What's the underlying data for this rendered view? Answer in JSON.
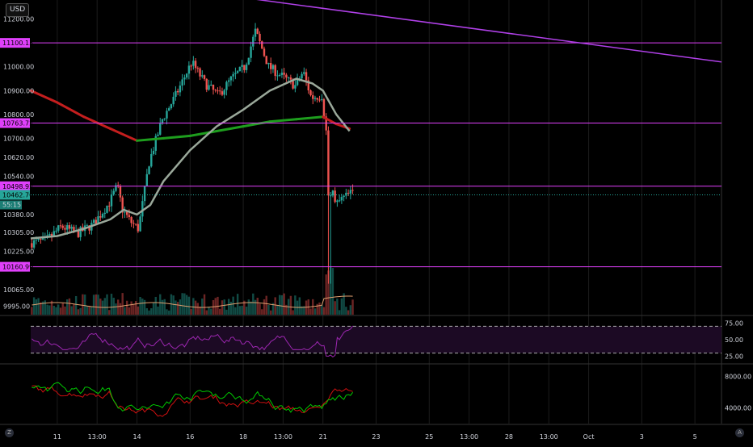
{
  "currency_badge": "USD",
  "chart_data": [
    {
      "type": "candlestick",
      "panel": "price",
      "price_axis_ticks": [
        "11200.00",
        "11100.13",
        "11000.00",
        "10900.00",
        "10800.00",
        "10763.72",
        "10700.00",
        "10620.00",
        "10540.00",
        "10498.92",
        "10462.70",
        "10380.00",
        "10305.00",
        "10225.00",
        "10160.99",
        "10065.00",
        "9995.00"
      ],
      "price_axis_range": [
        9960,
        11280
      ],
      "horizontal_levels": [
        {
          "value": 11100.13,
          "label": "11100.13",
          "color": "#e040fb"
        },
        {
          "value": 10763.72,
          "label": "10763.72",
          "color": "#e040fb"
        },
        {
          "value": 10498.92,
          "label": "10498.92",
          "color": "#e040fb"
        },
        {
          "value": 10160.99,
          "label": "10160.99",
          "color": "#e040fb"
        }
      ],
      "last_price": {
        "value": 10462.7,
        "label": "10462.70",
        "countdown": "55:15",
        "color": "#26a69a"
      },
      "trendline": {
        "color": "#b040e8",
        "from": {
          "day": 18,
          "price": 11290
        },
        "to": {
          "day": 36,
          "price": 11020
        }
      },
      "moving_averages": [
        {
          "color_up": "#1e9e1e",
          "color_down": "#c41e1e",
          "kind": "slow"
        },
        {
          "color": "#9aa89a",
          "kind": "fast"
        }
      ],
      "colors": {
        "up": "#26a69a",
        "down": "#ef5350",
        "volume_up": "#26a69a",
        "volume_down": "#ef5350"
      },
      "x_axis_ticks": [
        "11",
        "13:00",
        "14",
        "16",
        "18",
        "13:00",
        "21",
        "23",
        "25",
        "13:00",
        "28",
        "13:00",
        "Oct",
        "3",
        "5"
      ]
    },
    {
      "type": "line",
      "panel": "rsi",
      "axis_ticks": [
        "75.00",
        "50.00",
        "25.00"
      ],
      "bands": [
        30,
        70
      ],
      "color": "#9c27b0"
    },
    {
      "type": "line",
      "panel": "oscillator",
      "axis_ticks": [
        "8000.00",
        "4000.00"
      ],
      "series_colors": [
        "#00c800",
        "#d01010"
      ]
    }
  ]
}
